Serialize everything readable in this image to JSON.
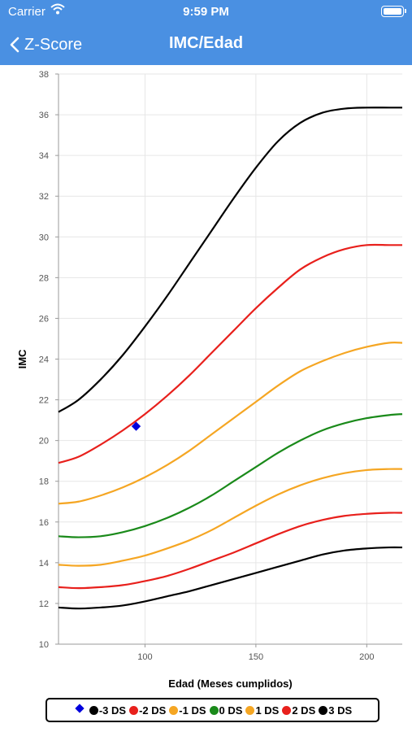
{
  "status_bar": {
    "carrier": "Carrier",
    "time": "9:59 PM"
  },
  "nav": {
    "back_label": "Z-Score",
    "title": "IMC/Edad"
  },
  "colors": {
    "nav_bg": "#4a90e2",
    "patient_point": "#0000dd"
  },
  "chart_data": {
    "type": "line",
    "xlabel": "Edad (Meses cumplidos)",
    "ylabel": "IMC",
    "xlim": [
      61,
      216
    ],
    "ylim": [
      10,
      38
    ],
    "x_ticks": [
      100,
      150,
      200
    ],
    "y_ticks": [
      10,
      12,
      14,
      16,
      18,
      20,
      22,
      24,
      26,
      28,
      30,
      32,
      34,
      36,
      38
    ],
    "grid": true,
    "legend_position": "bottom",
    "x": [
      61,
      70,
      80,
      90,
      100,
      110,
      120,
      130,
      140,
      150,
      160,
      170,
      180,
      190,
      200,
      210,
      216
    ],
    "series": [
      {
        "name": "-3 DS",
        "color": "#000000",
        "values": [
          11.8,
          11.75,
          11.8,
          11.9,
          12.1,
          12.35,
          12.6,
          12.9,
          13.2,
          13.5,
          13.8,
          14.1,
          14.4,
          14.6,
          14.7,
          14.75,
          14.75
        ]
      },
      {
        "name": "-2 DS",
        "color": "#e8201c",
        "values": [
          12.8,
          12.75,
          12.8,
          12.9,
          13.1,
          13.35,
          13.7,
          14.1,
          14.5,
          14.95,
          15.4,
          15.8,
          16.1,
          16.3,
          16.4,
          16.45,
          16.45
        ]
      },
      {
        "name": "-1 DS",
        "color": "#f5a623",
        "values": [
          13.9,
          13.85,
          13.9,
          14.1,
          14.35,
          14.7,
          15.1,
          15.6,
          16.2,
          16.8,
          17.35,
          17.8,
          18.15,
          18.4,
          18.55,
          18.6,
          18.6
        ]
      },
      {
        "name": "0 DS",
        "color": "#1a8a1a",
        "values": [
          15.3,
          15.25,
          15.3,
          15.5,
          15.8,
          16.2,
          16.7,
          17.3,
          18.0,
          18.7,
          19.4,
          20.0,
          20.5,
          20.85,
          21.1,
          21.25,
          21.3
        ]
      },
      {
        "name": "1 DS",
        "color": "#f5a623",
        "values": [
          16.9,
          17.0,
          17.3,
          17.7,
          18.2,
          18.8,
          19.5,
          20.3,
          21.1,
          21.9,
          22.7,
          23.4,
          23.9,
          24.3,
          24.6,
          24.8,
          24.8
        ]
      },
      {
        "name": "2 DS",
        "color": "#e8201c",
        "values": [
          18.9,
          19.2,
          19.8,
          20.5,
          21.3,
          22.2,
          23.2,
          24.3,
          25.4,
          26.5,
          27.5,
          28.4,
          29.0,
          29.4,
          29.6,
          29.6,
          29.6
        ]
      },
      {
        "name": "3 DS",
        "color": "#000000",
        "values": [
          21.4,
          22.0,
          23.0,
          24.2,
          25.6,
          27.1,
          28.7,
          30.3,
          31.9,
          33.4,
          34.7,
          35.6,
          36.1,
          36.3,
          36.35,
          36.35,
          36.35
        ]
      }
    ],
    "patient_point": {
      "x": 96,
      "y": 20.7
    }
  }
}
